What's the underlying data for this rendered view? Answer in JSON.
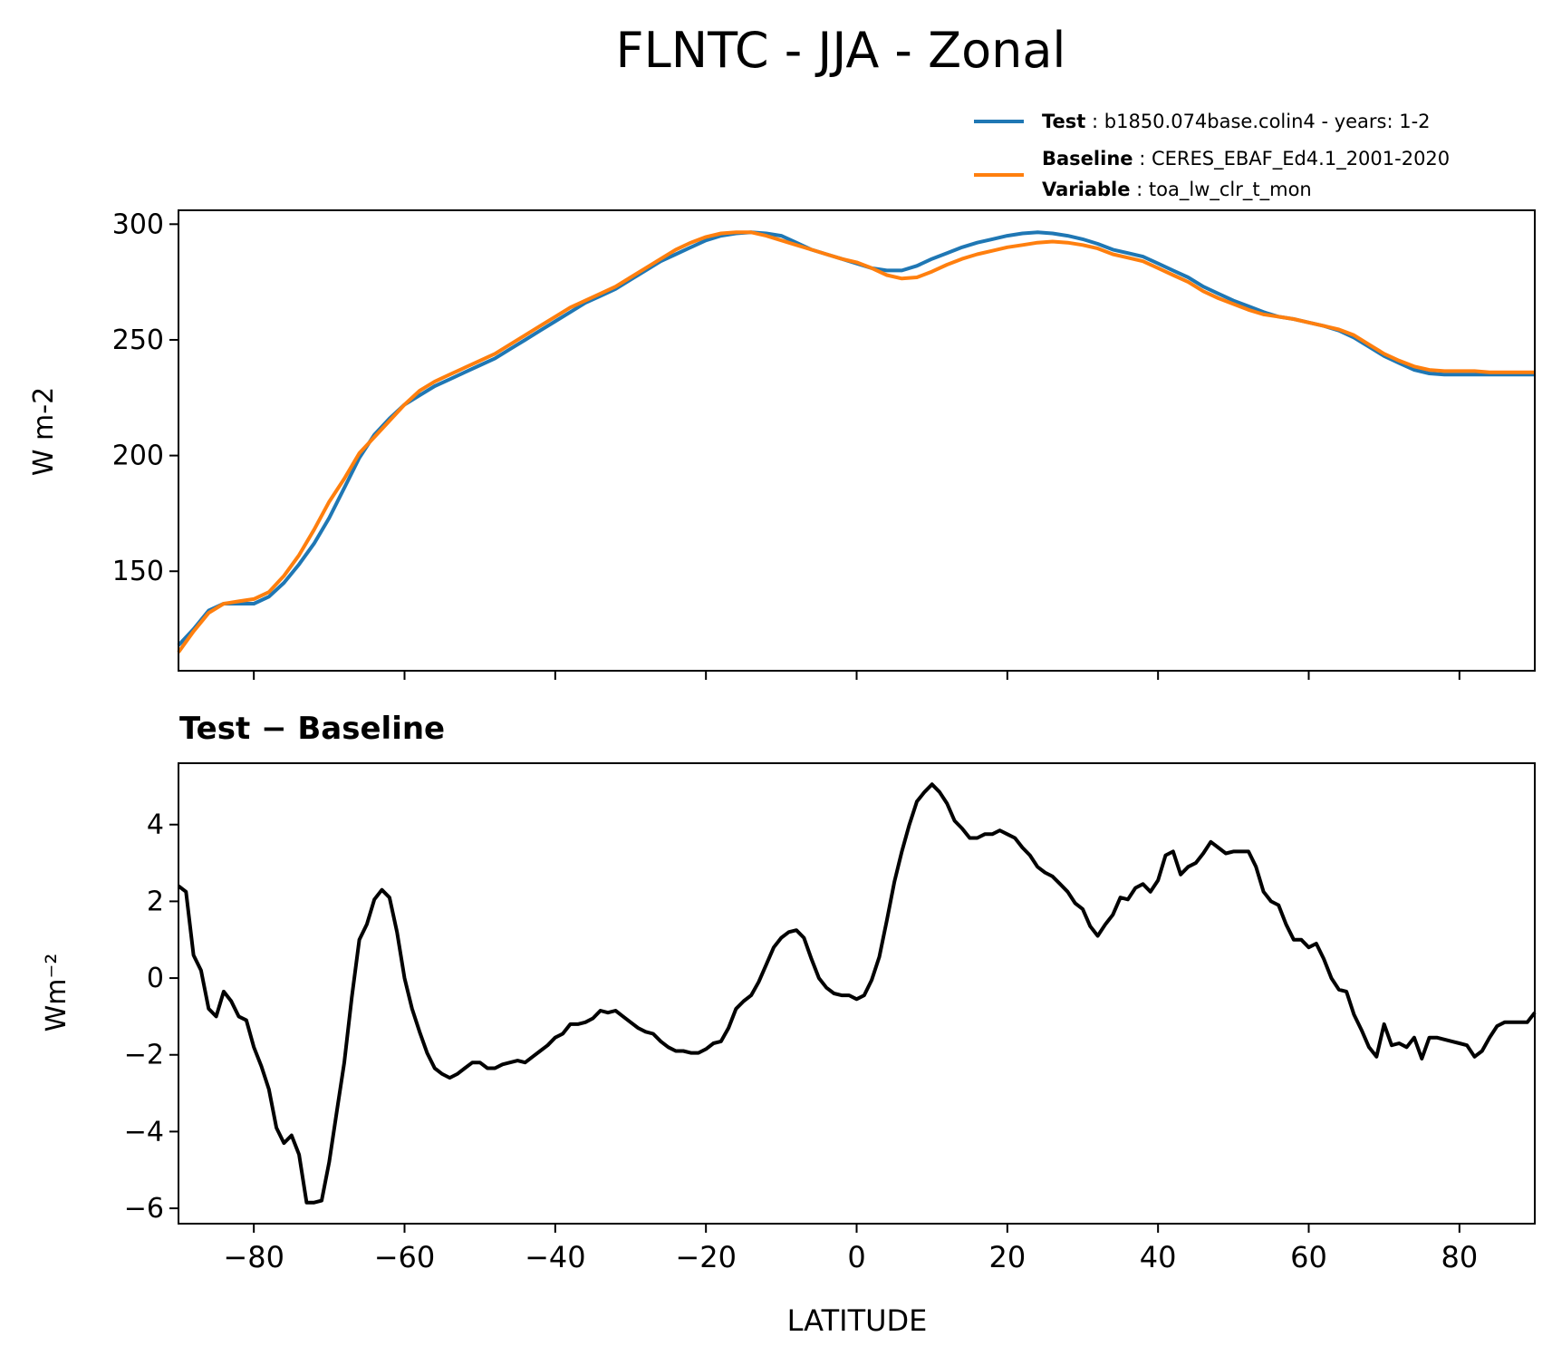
{
  "figure": {
    "title": "FLNTC - JJA - Zonal"
  },
  "legend": {
    "test_label": "Test",
    "test_value": ": b1850.074base.colin4 - years: 1-2",
    "baseline_label": "Baseline",
    "baseline_value": ": CERES_EBAF_Ed4.1_2001-2020",
    "variable_label": "Variable",
    "variable_value": ": toa_lw_clr_t_mon"
  },
  "chart_data": [
    {
      "type": "line",
      "ylabel": "W m-2",
      "xlim": [
        -90,
        90
      ],
      "ylim": [
        107,
        306
      ],
      "yticks": [
        150,
        200,
        250,
        300
      ],
      "xticks": [
        -80,
        -60,
        -40,
        -20,
        0,
        20,
        40,
        60,
        80
      ],
      "legend_position": "above-right",
      "series": [
        {
          "name": "Test",
          "color": "#1f77b4",
          "x": [
            -90,
            -88,
            -86,
            -84,
            -82,
            -80,
            -78,
            -76,
            -74,
            -72,
            -70,
            -68,
            -66,
            -64,
            -62,
            -60,
            -58,
            -56,
            -54,
            -52,
            -50,
            -48,
            -46,
            -44,
            -42,
            -40,
            -38,
            -36,
            -34,
            -32,
            -30,
            -28,
            -26,
            -24,
            -22,
            -20,
            -18,
            -16,
            -14,
            -12,
            -10,
            -8,
            -6,
            -4,
            -2,
            0,
            2,
            4,
            6,
            8,
            10,
            12,
            14,
            16,
            18,
            20,
            22,
            24,
            26,
            28,
            30,
            32,
            34,
            36,
            38,
            40,
            42,
            44,
            46,
            48,
            50,
            52,
            54,
            56,
            58,
            60,
            62,
            64,
            66,
            68,
            70,
            72,
            74,
            76,
            78,
            80,
            82,
            84,
            86,
            88,
            90
          ],
          "y": [
            118,
            125,
            133,
            136,
            136,
            136,
            139,
            145,
            153,
            162,
            173,
            186,
            199,
            209,
            216,
            222,
            226,
            230,
            233,
            236,
            239,
            242,
            246,
            250,
            254,
            258,
            262,
            266,
            269,
            272,
            276,
            280,
            284,
            287,
            290,
            293,
            295,
            296,
            296.5,
            296,
            295,
            292,
            289,
            287,
            285,
            283,
            281,
            280,
            280,
            282,
            285,
            287.5,
            290,
            292,
            293.5,
            295,
            296,
            296.5,
            296,
            295,
            293.5,
            291.5,
            289,
            287.5,
            286,
            283,
            280,
            277,
            273,
            270,
            267,
            264.5,
            262,
            260,
            259,
            257.5,
            256,
            254,
            251,
            247,
            243,
            240,
            237,
            235.5,
            235,
            235,
            235,
            235,
            235,
            235,
            235
          ]
        },
        {
          "name": "Baseline",
          "color": "#ff7f0e",
          "x": [
            -90,
            -88,
            -86,
            -84,
            -82,
            -80,
            -78,
            -76,
            -74,
            -72,
            -70,
            -68,
            -66,
            -64,
            -62,
            -60,
            -58,
            -56,
            -54,
            -52,
            -50,
            -48,
            -46,
            -44,
            -42,
            -40,
            -38,
            -36,
            -34,
            -32,
            -30,
            -28,
            -26,
            -24,
            -22,
            -20,
            -18,
            -16,
            -14,
            -12,
            -10,
            -8,
            -6,
            -4,
            -2,
            0,
            2,
            4,
            6,
            8,
            10,
            12,
            14,
            16,
            18,
            20,
            22,
            24,
            26,
            28,
            30,
            32,
            34,
            36,
            38,
            40,
            42,
            44,
            46,
            48,
            50,
            52,
            54,
            56,
            58,
            60,
            62,
            64,
            66,
            68,
            70,
            72,
            74,
            76,
            78,
            80,
            82,
            84,
            86,
            88,
            90
          ],
          "y": [
            115,
            124,
            132,
            136,
            137,
            138,
            141,
            148,
            157,
            168,
            180,
            190,
            201,
            208,
            215,
            222,
            228,
            232,
            235,
            238,
            241,
            244,
            248,
            252,
            256,
            260,
            264,
            267,
            270,
            273,
            277,
            281,
            285,
            289,
            292,
            294.5,
            296,
            296.5,
            296.5,
            295,
            293,
            291,
            289,
            287,
            285,
            283.5,
            281,
            278,
            276.5,
            277,
            279.5,
            282.5,
            285,
            287,
            288.5,
            290,
            291,
            292,
            292.5,
            292,
            291,
            289.5,
            287,
            285.5,
            284,
            281,
            278,
            275,
            271,
            268,
            265.5,
            263,
            261,
            260,
            259,
            257.5,
            256,
            254.5,
            252,
            248,
            244,
            241,
            238.5,
            237,
            236.5,
            236.5,
            236.5,
            236,
            236,
            236,
            236
          ]
        }
      ]
    },
    {
      "type": "line",
      "title": "Test − Baseline",
      "xlabel": "LATITUDE",
      "ylabel": "Wm⁻²",
      "xlim": [
        -90,
        90
      ],
      "ylim": [
        -6.4,
        5.6
      ],
      "yticks": [
        -6,
        -4,
        -2,
        0,
        2,
        4
      ],
      "xticks": [
        -80,
        -60,
        -40,
        -20,
        0,
        20,
        40,
        60,
        80
      ],
      "tick_labels_y": [
        "−6",
        "−4",
        "−2",
        "0",
        "2",
        "4"
      ],
      "tick_labels_x": [
        "−80",
        "−60",
        "−40",
        "−20",
        "0",
        "20",
        "40",
        "60",
        "80"
      ],
      "series": [
        {
          "color": "#000000",
          "x": [
            -90,
            -89,
            -88,
            -87,
            -86,
            -85,
            -84,
            -83,
            -82,
            -81,
            -80,
            -79,
            -78,
            -77,
            -76,
            -75,
            -74,
            -73,
            -72,
            -71,
            -70,
            -69,
            -68,
            -67,
            -66,
            -65,
            -64,
            -63,
            -62,
            -61,
            -60,
            -59,
            -58,
            -57,
            -56,
            -55,
            -54,
            -53,
            -52,
            -51,
            -50,
            -49,
            -48,
            -47,
            -46,
            -45,
            -44,
            -43,
            -42,
            -41,
            -40,
            -39,
            -38,
            -37,
            -36,
            -35,
            -34,
            -33,
            -32,
            -31,
            -30,
            -29,
            -28,
            -27,
            -26,
            -25,
            -24,
            -23,
            -22,
            -21,
            -20,
            -19,
            -18,
            -17,
            -16,
            -15,
            -14,
            -13,
            -12,
            -11,
            -10,
            -9,
            -8,
            -7,
            -6,
            -5,
            -4,
            -3,
            -2,
            -1,
            0,
            1,
            2,
            3,
            4,
            5,
            6,
            7,
            8,
            9,
            10,
            11,
            12,
            13,
            14,
            15,
            16,
            17,
            18,
            19,
            20,
            21,
            22,
            23,
            24,
            25,
            26,
            27,
            28,
            29,
            30,
            31,
            32,
            33,
            34,
            35,
            36,
            37,
            38,
            39,
            40,
            41,
            42,
            43,
            44,
            45,
            46,
            47,
            48,
            49,
            50,
            51,
            52,
            53,
            54,
            55,
            56,
            57,
            58,
            59,
            60,
            61,
            62,
            63,
            64,
            65,
            66,
            67,
            68,
            69,
            70,
            71,
            72,
            73,
            74,
            75,
            76,
            77,
            78,
            79,
            80,
            81,
            82,
            83,
            84,
            85,
            86,
            87,
            88,
            89,
            90
          ],
          "y": [
            2.4,
            2.25,
            0.6,
            0.2,
            -0.8,
            -1.0,
            -0.35,
            -0.6,
            -1.0,
            -1.1,
            -1.8,
            -2.3,
            -2.9,
            -3.9,
            -4.3,
            -4.1,
            -4.6,
            -5.85,
            -5.85,
            -5.8,
            -4.8,
            -3.5,
            -2.2,
            -0.5,
            1.0,
            1.4,
            2.05,
            2.3,
            2.1,
            1.2,
            0.0,
            -0.8,
            -1.4,
            -1.95,
            -2.35,
            -2.5,
            -2.6,
            -2.5,
            -2.35,
            -2.2,
            -2.2,
            -2.35,
            -2.35,
            -2.25,
            -2.2,
            -2.15,
            -2.2,
            -2.05,
            -1.9,
            -1.75,
            -1.55,
            -1.45,
            -1.2,
            -1.2,
            -1.15,
            -1.05,
            -0.85,
            -0.9,
            -0.85,
            -1.0,
            -1.15,
            -1.3,
            -1.4,
            -1.45,
            -1.65,
            -1.8,
            -1.9,
            -1.9,
            -1.95,
            -1.95,
            -1.85,
            -1.7,
            -1.65,
            -1.3,
            -0.8,
            -0.6,
            -0.45,
            -0.1,
            0.35,
            0.8,
            1.05,
            1.2,
            1.25,
            1.05,
            0.5,
            0.0,
            -0.25,
            -0.4,
            -0.45,
            -0.45,
            -0.55,
            -0.45,
            -0.05,
            0.55,
            1.5,
            2.5,
            3.3,
            4.0,
            4.6,
            4.85,
            5.05,
            4.85,
            4.55,
            4.1,
            3.9,
            3.65,
            3.65,
            3.75,
            3.75,
            3.85,
            3.75,
            3.65,
            3.4,
            3.2,
            2.9,
            2.75,
            2.65,
            2.45,
            2.25,
            1.95,
            1.8,
            1.35,
            1.1,
            1.4,
            1.65,
            2.1,
            2.05,
            2.35,
            2.45,
            2.25,
            2.55,
            3.2,
            3.3,
            2.7,
            2.9,
            3.0,
            3.25,
            3.55,
            3.4,
            3.25,
            3.3,
            3.3,
            3.3,
            2.9,
            2.25,
            2.0,
            1.9,
            1.4,
            1.0,
            1.0,
            0.8,
            0.9,
            0.5,
            0.0,
            -0.3,
            -0.35,
            -0.95,
            -1.35,
            -1.8,
            -2.05,
            -1.2,
            -1.75,
            -1.7,
            -1.8,
            -1.55,
            -2.1,
            -1.55,
            -1.55,
            -1.6,
            -1.65,
            -1.7,
            -1.75,
            -2.05,
            -1.9,
            -1.55,
            -1.25,
            -1.15,
            -1.15,
            -1.15,
            -1.15,
            -0.9
          ]
        }
      ]
    }
  ]
}
